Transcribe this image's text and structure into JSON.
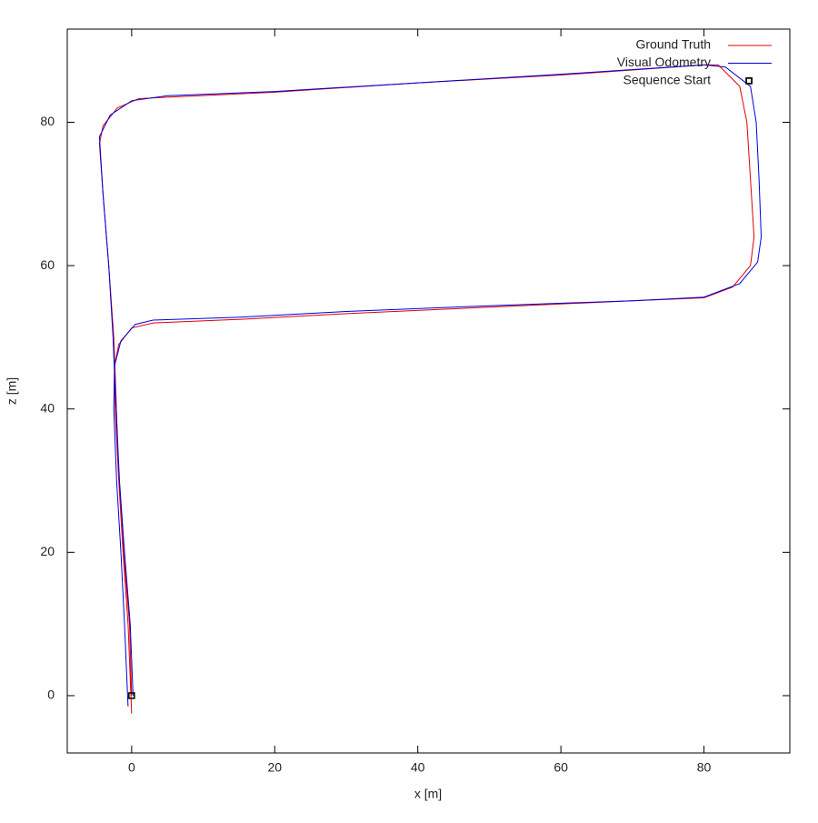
{
  "chart_data": {
    "type": "line",
    "xlabel": "x [m]",
    "ylabel": "z [m]",
    "xlim": [
      -9,
      92
    ],
    "ylim": [
      -8,
      93
    ],
    "xticks": [
      0,
      20,
      40,
      60,
      80
    ],
    "yticks": [
      0,
      20,
      40,
      60,
      80
    ],
    "grid": false,
    "legend": "top-right",
    "series": [
      {
        "name": "Ground Truth",
        "color": "#e00000",
        "mode": "lines",
        "x": [
          0,
          -0.5,
          -1.2,
          -1.8,
          -2.3,
          -2.4,
          -1.8,
          0,
          3,
          15,
          30,
          50,
          70,
          80,
          84,
          86.5,
          87,
          86.5,
          86,
          85,
          82,
          80,
          60,
          40,
          20,
          5,
          1,
          -2,
          -4,
          -4.5,
          -4,
          -3.2,
          -2.5,
          -2.3,
          -1.8,
          -1.1,
          -0.3,
          0
        ],
        "values": [
          -2.5,
          10,
          20,
          30,
          40,
          46,
          49,
          51.3,
          52,
          52.5,
          53.3,
          54.2,
          55.1,
          55.5,
          57,
          60,
          64,
          72,
          80,
          85,
          88,
          88,
          86.6,
          85.5,
          84.2,
          83.5,
          83.3,
          82,
          79.5,
          77,
          70,
          60,
          50,
          45,
          30,
          20,
          10,
          0
        ]
      },
      {
        "name": "Visual Odometry",
        "color": "#0000e0",
        "mode": "lines",
        "x": [
          -0.5,
          -1,
          -1.5,
          -2.1,
          -2.5,
          -2.4,
          -1.5,
          0.5,
          3,
          15,
          30,
          50,
          70,
          80,
          85,
          87.5,
          88,
          87.7,
          87.3,
          86.5,
          83,
          80,
          60,
          40,
          20,
          5,
          0,
          -3,
          -4.5,
          -4,
          -3.2,
          -2.6,
          -2.4,
          -1.7,
          -1,
          -0.2,
          0.2
        ],
        "values": [
          -1.5,
          10,
          20,
          30,
          40,
          46,
          49.5,
          51.8,
          52.4,
          52.8,
          53.6,
          54.4,
          55.1,
          55.6,
          57.5,
          60.5,
          64,
          72,
          80,
          85,
          87.7,
          88,
          86.7,
          85.5,
          84.3,
          83.7,
          83,
          81,
          78,
          70,
          60,
          50,
          45,
          30,
          20,
          10,
          0
        ]
      },
      {
        "name": "Sequence Start",
        "color": "#000000",
        "mode": "markers",
        "x": [
          0,
          86.3
        ],
        "values": [
          0,
          85.8
        ]
      }
    ]
  }
}
